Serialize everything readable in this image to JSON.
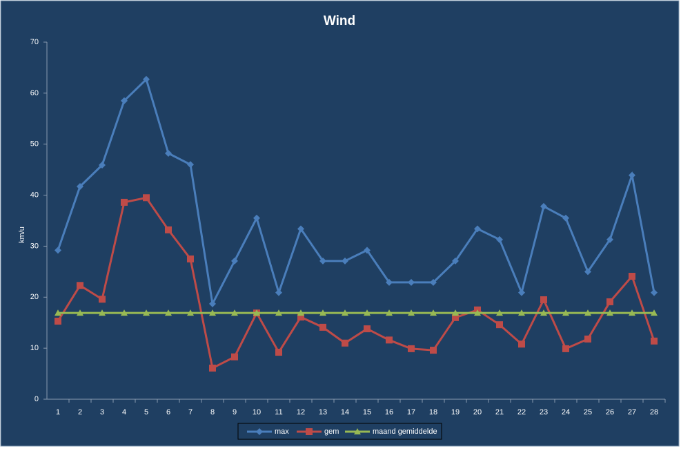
{
  "chart_data": {
    "type": "line",
    "title": "Wind",
    "y_label": "km/u",
    "categories": [
      1,
      2,
      3,
      4,
      5,
      6,
      7,
      8,
      9,
      10,
      11,
      12,
      13,
      14,
      15,
      16,
      17,
      18,
      19,
      20,
      21,
      22,
      23,
      24,
      25,
      26,
      27,
      28
    ],
    "series": [
      {
        "name": "max",
        "color": "#4a7ebb",
        "marker": "diamond",
        "values": [
          29.2,
          41.7,
          45.9,
          58.5,
          62.7,
          48.2,
          46.0,
          18.7,
          27.1,
          35.5,
          20.9,
          33.4,
          27.1,
          27.1,
          29.2,
          22.9,
          22.9,
          22.9,
          27.1,
          33.4,
          31.3,
          20.9,
          37.8,
          35.5,
          25.0,
          31.3,
          43.9,
          20.9
        ]
      },
      {
        "name": "gem",
        "color": "#be4b48",
        "marker": "square",
        "values": [
          15.3,
          22.3,
          19.6,
          38.6,
          39.5,
          33.2,
          27.5,
          6.1,
          8.3,
          16.9,
          9.2,
          16.1,
          14.1,
          11.0,
          13.8,
          11.6,
          9.9,
          9.6,
          16.0,
          17.5,
          14.6,
          10.8,
          19.5,
          9.9,
          11.8,
          19.1,
          24.1,
          11.4
        ]
      },
      {
        "name": "maand gemiddelde",
        "color": "#98b954",
        "marker": "triangle",
        "values": [
          16.9,
          16.9,
          16.9,
          16.9,
          16.9,
          16.9,
          16.9,
          16.9,
          16.9,
          16.9,
          16.9,
          16.9,
          16.9,
          16.9,
          16.9,
          16.9,
          16.9,
          16.9,
          16.9,
          16.9,
          16.9,
          16.9,
          16.9,
          16.9,
          16.9,
          16.9,
          16.9,
          16.9
        ]
      }
    ],
    "ylim": [
      0,
      70
    ],
    "yticks": [
      0,
      10,
      20,
      30,
      40,
      50,
      60,
      70
    ],
    "grid": false,
    "legend": "bottom"
  }
}
